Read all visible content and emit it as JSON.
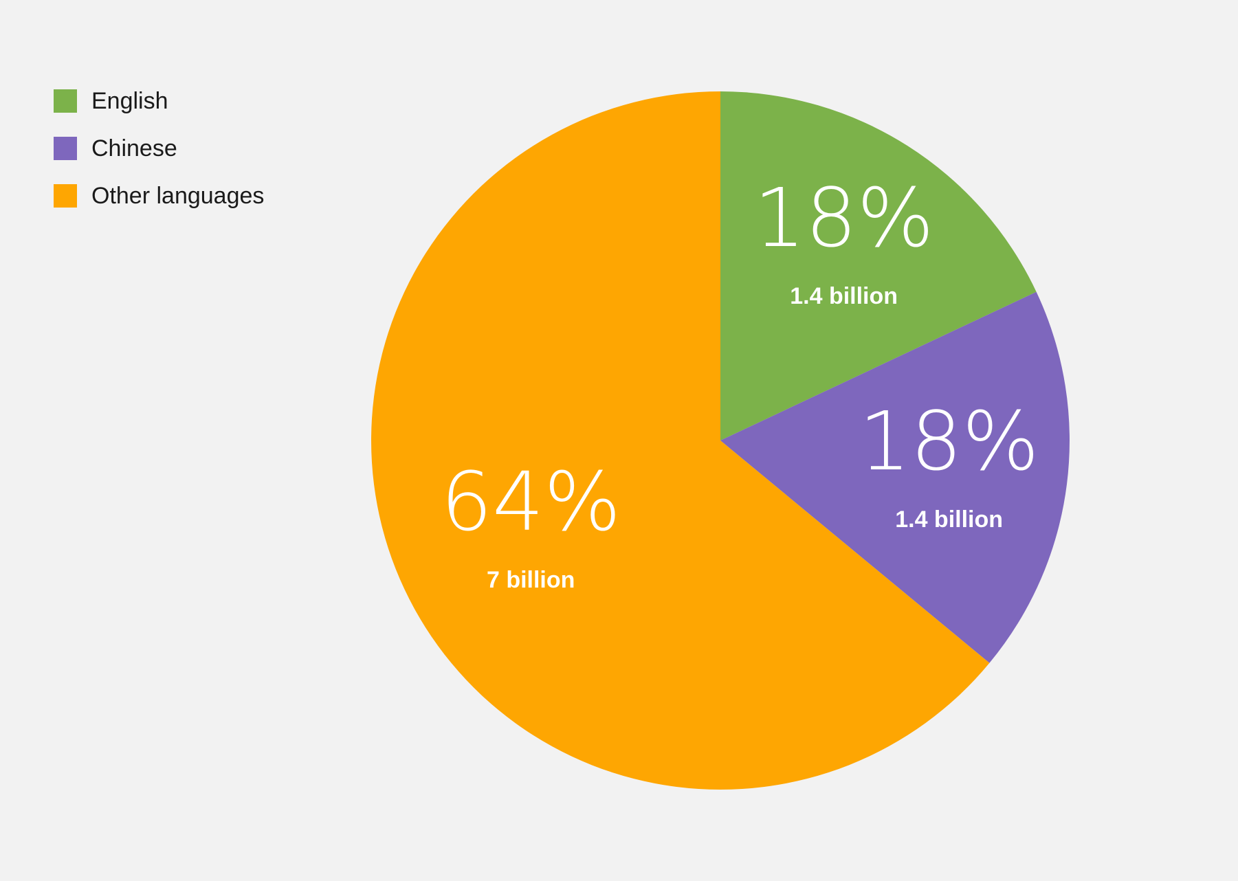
{
  "chart_data": {
    "type": "pie",
    "categories": [
      "English",
      "Chinese",
      "Other languages"
    ],
    "values": [
      18,
      18,
      64
    ],
    "value_labels": [
      "18%",
      "18%",
      "64%"
    ],
    "sub_labels": [
      "1.4 billion",
      "1.4 billion",
      "7 billion"
    ],
    "colors": [
      "#7cb24a",
      "#7e67bd",
      "#fea602"
    ],
    "legend_placement": "top-left",
    "start_angle": "12 o'clock",
    "direction": "clockwise"
  }
}
